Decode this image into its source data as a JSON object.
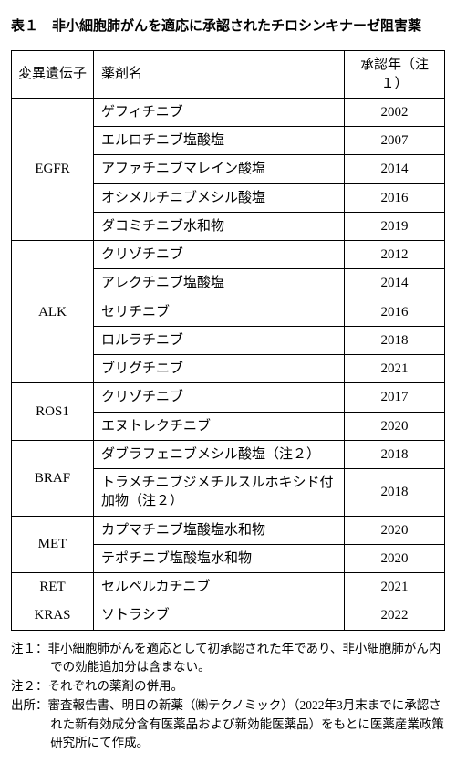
{
  "table": {
    "title": "表１　非小細胞肺がんを適応に承認されたチロシンキナーゼ阻害薬",
    "headers": {
      "gene": "変異遺伝子",
      "drug": "薬剤名",
      "year": "承認年（注１）"
    },
    "groups": [
      {
        "gene": "EGFR",
        "rows": [
          {
            "drug": "ゲフィチニブ",
            "year": "2002"
          },
          {
            "drug": "エルロチニブ塩酸塩",
            "year": "2007"
          },
          {
            "drug": "アファチニブマレイン酸塩",
            "year": "2014"
          },
          {
            "drug": "オシメルチニブメシル酸塩",
            "year": "2016"
          },
          {
            "drug": "ダコミチニブ水和物",
            "year": "2019"
          }
        ]
      },
      {
        "gene": "ALK",
        "rows": [
          {
            "drug": "クリゾチニブ",
            "year": "2012"
          },
          {
            "drug": "アレクチニブ塩酸塩",
            "year": "2014"
          },
          {
            "drug": "セリチニブ",
            "year": "2016"
          },
          {
            "drug": "ロルラチニブ",
            "year": "2018"
          },
          {
            "drug": "ブリグチニブ",
            "year": "2021"
          }
        ]
      },
      {
        "gene": "ROS1",
        "rows": [
          {
            "drug": "クリゾチニブ",
            "year": "2017"
          },
          {
            "drug": "エヌトレクチニブ",
            "year": "2020"
          }
        ]
      },
      {
        "gene": "BRAF",
        "rows": [
          {
            "drug": "ダブラフェニブメシル酸塩（注２）",
            "year": "2018"
          },
          {
            "drug": "トラメチニブジメチルスルホキシド付加物（注２）",
            "year": "2018"
          }
        ]
      },
      {
        "gene": "MET",
        "rows": [
          {
            "drug": "カプマチニブ塩酸塩水和物",
            "year": "2020"
          },
          {
            "drug": "テポチニブ塩酸塩水和物",
            "year": "2020"
          }
        ]
      },
      {
        "gene": "RET",
        "rows": [
          {
            "drug": "セルペルカチニブ",
            "year": "2021"
          }
        ]
      },
      {
        "gene": "KRAS",
        "rows": [
          {
            "drug": "ソトラシブ",
            "year": "2022"
          }
        ]
      }
    ]
  },
  "notes": [
    "注１：非小細胞肺がんを適応として初承認された年であり、非小細胞肺がん内での効能追加分は含まない。",
    "注２：それぞれの薬剤の併用。",
    "出所：審査報告書、明日の新薬（㈱テクノミック）（2022年3月末までに承認された新有効成分含有医薬品および新効能医薬品）をもとに医薬産業政策研究所にて作成。"
  ]
}
